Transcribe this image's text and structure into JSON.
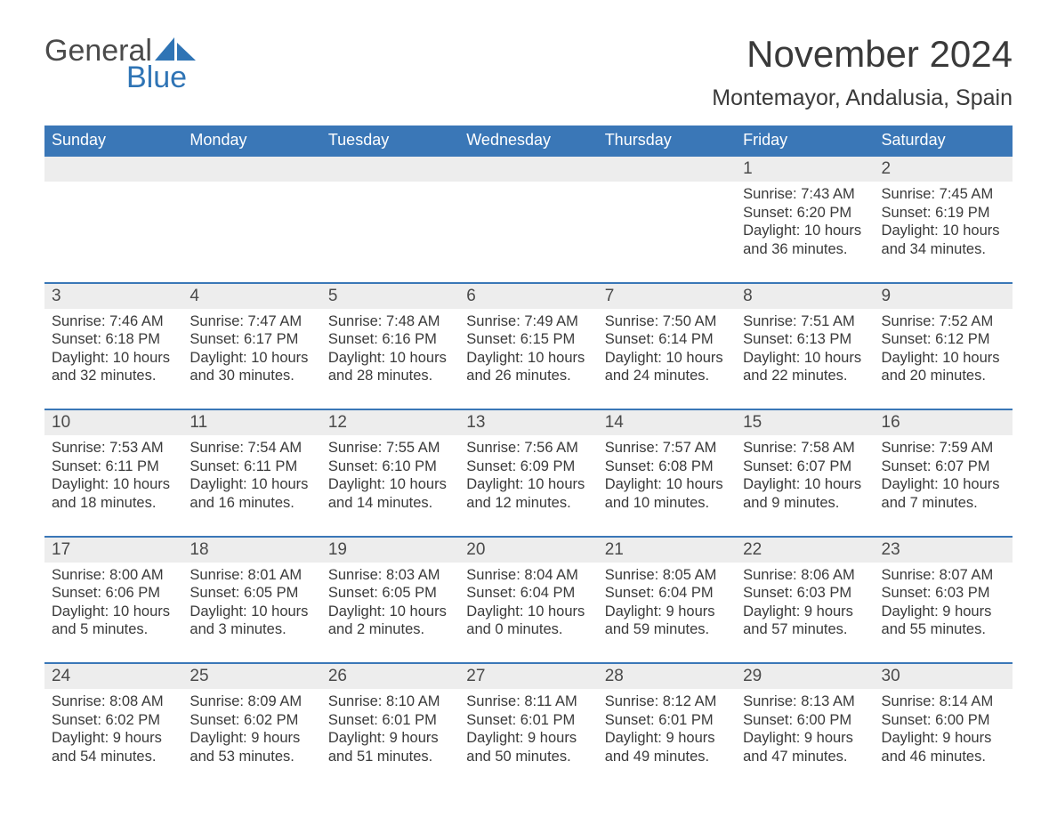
{
  "logo": {
    "word1": "General",
    "word2": "Blue"
  },
  "title": "November 2024",
  "location": "Montemayor, Andalusia, Spain",
  "header_bg": "#3a77b7",
  "header_fg": "#ffffff",
  "daynum_bg": "#ededed",
  "text_color": "#3a3a3a",
  "columns": [
    "Sunday",
    "Monday",
    "Tuesday",
    "Wednesday",
    "Thursday",
    "Friday",
    "Saturday"
  ],
  "weeks": [
    [
      null,
      null,
      null,
      null,
      null,
      {
        "n": "1",
        "sr": "Sunrise: 7:43 AM",
        "ss": "Sunset: 6:20 PM",
        "d1": "Daylight: 10 hours",
        "d2": "and 36 minutes."
      },
      {
        "n": "2",
        "sr": "Sunrise: 7:45 AM",
        "ss": "Sunset: 6:19 PM",
        "d1": "Daylight: 10 hours",
        "d2": "and 34 minutes."
      }
    ],
    [
      {
        "n": "3",
        "sr": "Sunrise: 7:46 AM",
        "ss": "Sunset: 6:18 PM",
        "d1": "Daylight: 10 hours",
        "d2": "and 32 minutes."
      },
      {
        "n": "4",
        "sr": "Sunrise: 7:47 AM",
        "ss": "Sunset: 6:17 PM",
        "d1": "Daylight: 10 hours",
        "d2": "and 30 minutes."
      },
      {
        "n": "5",
        "sr": "Sunrise: 7:48 AM",
        "ss": "Sunset: 6:16 PM",
        "d1": "Daylight: 10 hours",
        "d2": "and 28 minutes."
      },
      {
        "n": "6",
        "sr": "Sunrise: 7:49 AM",
        "ss": "Sunset: 6:15 PM",
        "d1": "Daylight: 10 hours",
        "d2": "and 26 minutes."
      },
      {
        "n": "7",
        "sr": "Sunrise: 7:50 AM",
        "ss": "Sunset: 6:14 PM",
        "d1": "Daylight: 10 hours",
        "d2": "and 24 minutes."
      },
      {
        "n": "8",
        "sr": "Sunrise: 7:51 AM",
        "ss": "Sunset: 6:13 PM",
        "d1": "Daylight: 10 hours",
        "d2": "and 22 minutes."
      },
      {
        "n": "9",
        "sr": "Sunrise: 7:52 AM",
        "ss": "Sunset: 6:12 PM",
        "d1": "Daylight: 10 hours",
        "d2": "and 20 minutes."
      }
    ],
    [
      {
        "n": "10",
        "sr": "Sunrise: 7:53 AM",
        "ss": "Sunset: 6:11 PM",
        "d1": "Daylight: 10 hours",
        "d2": "and 18 minutes."
      },
      {
        "n": "11",
        "sr": "Sunrise: 7:54 AM",
        "ss": "Sunset: 6:11 PM",
        "d1": "Daylight: 10 hours",
        "d2": "and 16 minutes."
      },
      {
        "n": "12",
        "sr": "Sunrise: 7:55 AM",
        "ss": "Sunset: 6:10 PM",
        "d1": "Daylight: 10 hours",
        "d2": "and 14 minutes."
      },
      {
        "n": "13",
        "sr": "Sunrise: 7:56 AM",
        "ss": "Sunset: 6:09 PM",
        "d1": "Daylight: 10 hours",
        "d2": "and 12 minutes."
      },
      {
        "n": "14",
        "sr": "Sunrise: 7:57 AM",
        "ss": "Sunset: 6:08 PM",
        "d1": "Daylight: 10 hours",
        "d2": "and 10 minutes."
      },
      {
        "n": "15",
        "sr": "Sunrise: 7:58 AM",
        "ss": "Sunset: 6:07 PM",
        "d1": "Daylight: 10 hours",
        "d2": "and 9 minutes."
      },
      {
        "n": "16",
        "sr": "Sunrise: 7:59 AM",
        "ss": "Sunset: 6:07 PM",
        "d1": "Daylight: 10 hours",
        "d2": "and 7 minutes."
      }
    ],
    [
      {
        "n": "17",
        "sr": "Sunrise: 8:00 AM",
        "ss": "Sunset: 6:06 PM",
        "d1": "Daylight: 10 hours",
        "d2": "and 5 minutes."
      },
      {
        "n": "18",
        "sr": "Sunrise: 8:01 AM",
        "ss": "Sunset: 6:05 PM",
        "d1": "Daylight: 10 hours",
        "d2": "and 3 minutes."
      },
      {
        "n": "19",
        "sr": "Sunrise: 8:03 AM",
        "ss": "Sunset: 6:05 PM",
        "d1": "Daylight: 10 hours",
        "d2": "and 2 minutes."
      },
      {
        "n": "20",
        "sr": "Sunrise: 8:04 AM",
        "ss": "Sunset: 6:04 PM",
        "d1": "Daylight: 10 hours",
        "d2": "and 0 minutes."
      },
      {
        "n": "21",
        "sr": "Sunrise: 8:05 AM",
        "ss": "Sunset: 6:04 PM",
        "d1": "Daylight: 9 hours",
        "d2": "and 59 minutes."
      },
      {
        "n": "22",
        "sr": "Sunrise: 8:06 AM",
        "ss": "Sunset: 6:03 PM",
        "d1": "Daylight: 9 hours",
        "d2": "and 57 minutes."
      },
      {
        "n": "23",
        "sr": "Sunrise: 8:07 AM",
        "ss": "Sunset: 6:03 PM",
        "d1": "Daylight: 9 hours",
        "d2": "and 55 minutes."
      }
    ],
    [
      {
        "n": "24",
        "sr": "Sunrise: 8:08 AM",
        "ss": "Sunset: 6:02 PM",
        "d1": "Daylight: 9 hours",
        "d2": "and 54 minutes."
      },
      {
        "n": "25",
        "sr": "Sunrise: 8:09 AM",
        "ss": "Sunset: 6:02 PM",
        "d1": "Daylight: 9 hours",
        "d2": "and 53 minutes."
      },
      {
        "n": "26",
        "sr": "Sunrise: 8:10 AM",
        "ss": "Sunset: 6:01 PM",
        "d1": "Daylight: 9 hours",
        "d2": "and 51 minutes."
      },
      {
        "n": "27",
        "sr": "Sunrise: 8:11 AM",
        "ss": "Sunset: 6:01 PM",
        "d1": "Daylight: 9 hours",
        "d2": "and 50 minutes."
      },
      {
        "n": "28",
        "sr": "Sunrise: 8:12 AM",
        "ss": "Sunset: 6:01 PM",
        "d1": "Daylight: 9 hours",
        "d2": "and 49 minutes."
      },
      {
        "n": "29",
        "sr": "Sunrise: 8:13 AM",
        "ss": "Sunset: 6:00 PM",
        "d1": "Daylight: 9 hours",
        "d2": "and 47 minutes."
      },
      {
        "n": "30",
        "sr": "Sunrise: 8:14 AM",
        "ss": "Sunset: 6:00 PM",
        "d1": "Daylight: 9 hours",
        "d2": "and 46 minutes."
      }
    ]
  ]
}
